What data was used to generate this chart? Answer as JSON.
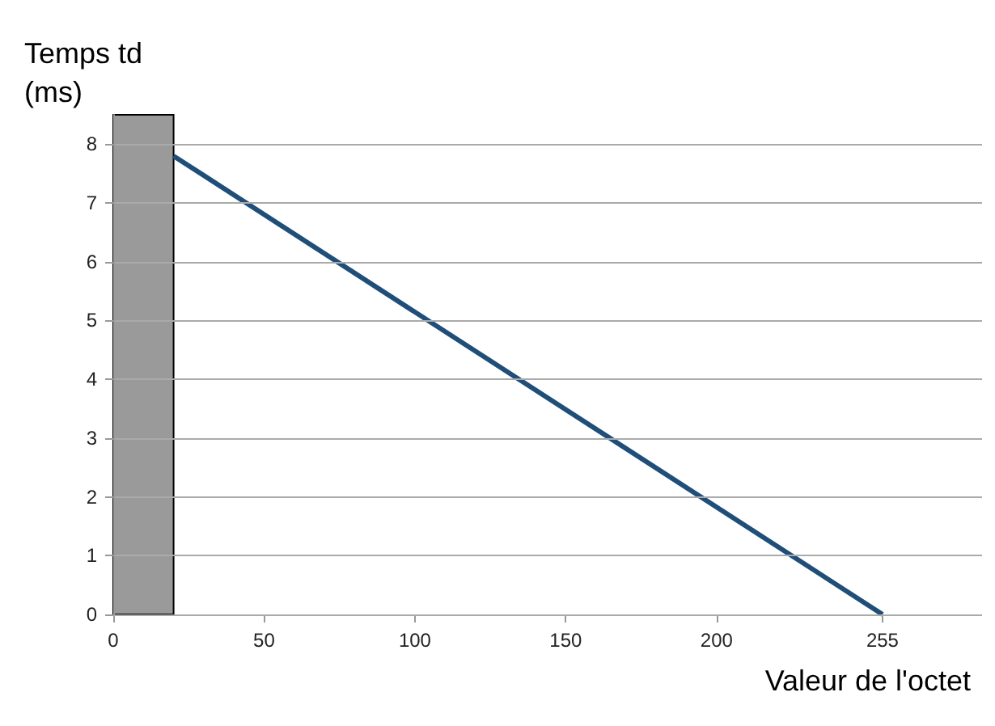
{
  "chart_data": {
    "type": "line",
    "xlabel": "Valeur de l'octet",
    "ylabel": "Temps td\n(ms)",
    "x": [
      20,
      255
    ],
    "series": [
      {
        "color": "#1f4e79",
        "values": [
          7.8,
          0
        ]
      }
    ],
    "xlim": [
      0,
      288
    ],
    "xticks": [
      0,
      50,
      100,
      150,
      200,
      255
    ],
    "ylim": [
      0,
      8.5
    ],
    "yticks": [
      0,
      1,
      2,
      3,
      4,
      5,
      6,
      7,
      8
    ],
    "bands": [
      {
        "axis": "x",
        "from": 0,
        "to": 20,
        "color": "#9a9a9a"
      }
    ],
    "grid": "y",
    "marker": "none",
    "line_style": "solid"
  }
}
